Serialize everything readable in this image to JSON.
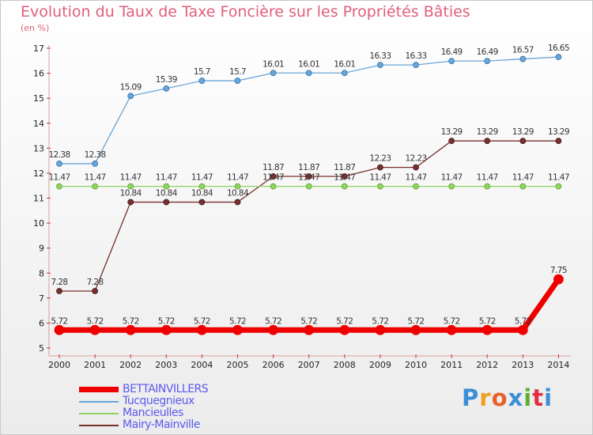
{
  "title": "Evolution du Taux de Taxe Foncière sur les Propriétés Bâties",
  "unit": "(en %)",
  "logo": {
    "text": "Proxiti",
    "letters": [
      "P",
      "r",
      "o",
      "x",
      "i",
      "t",
      "i"
    ],
    "colors": [
      "#3a8fd8",
      "#f0a020",
      "#e8602a",
      "#3a8fd8",
      "#60b030",
      "#e03040",
      "#3a8fd8"
    ]
  },
  "colors": {
    "title": "#e0607a",
    "legend_text": "#5a5af0"
  },
  "chart_data": {
    "type": "line",
    "title": "Evolution du Taux de Taxe Foncière sur les Propriétés Bâties",
    "ylabel": "(en %)",
    "xlabel": "",
    "x": [
      2000,
      2001,
      2002,
      2003,
      2004,
      2005,
      2006,
      2007,
      2008,
      2009,
      2010,
      2011,
      2012,
      2013,
      2014
    ],
    "ylim": [
      5,
      17
    ],
    "yticks": [
      5,
      6,
      7,
      8,
      9,
      10,
      11,
      12,
      13,
      14,
      15,
      16,
      17
    ],
    "grid": false,
    "legend_position": "bottom-left",
    "series": [
      {
        "name": "BETTAINVILLERS",
        "color": "#ee0000",
        "width": 7,
        "marker": 6,
        "values": [
          5.72,
          5.72,
          5.72,
          5.72,
          5.72,
          5.72,
          5.72,
          5.72,
          5.72,
          5.72,
          5.72,
          5.72,
          5.72,
          5.72,
          7.75
        ],
        "labels": [
          "5.72",
          "5.72",
          "5.72",
          "5.72",
          "5.72",
          "5.72",
          "5.72",
          "5.72",
          "5.72",
          "5.72",
          "5.72",
          "5.72",
          "5.72",
          "5.72",
          "7.75"
        ]
      },
      {
        "name": "Tucquegnieux",
        "color": "#6aa6d8",
        "width": 1.3,
        "marker": 3.5,
        "values": [
          12.38,
          12.38,
          15.09,
          15.39,
          15.7,
          15.7,
          16.01,
          16.01,
          16.01,
          16.33,
          16.33,
          16.49,
          16.49,
          16.57,
          16.65
        ],
        "labels": [
          "12.38",
          "12.38",
          "15.09",
          "15.39",
          "15.7",
          "15.7",
          "16.01",
          "16.01",
          "16.01",
          "16.33",
          "16.33",
          "16.49",
          "16.49",
          "16.57",
          "16.65"
        ]
      },
      {
        "name": "Mancieulles",
        "color": "#8fd460",
        "width": 1.3,
        "marker": 3.5,
        "values": [
          11.47,
          11.47,
          11.47,
          11.47,
          11.47,
          11.47,
          11.47,
          11.47,
          11.47,
          11.47,
          11.47,
          11.47,
          11.47,
          11.47,
          11.47
        ],
        "labels": [
          "11.47",
          "11.47",
          "11.47",
          "11.47",
          "11.47",
          "11.47",
          "11.47",
          "11.47",
          "11.47",
          "11.47",
          "11.47",
          "11.47",
          "11.47",
          "11.47",
          "11.47"
        ]
      },
      {
        "name": "Mairy-Mainville",
        "color": "#7a2f2f",
        "width": 1.3,
        "marker": 3.5,
        "values": [
          7.28,
          7.28,
          10.84,
          10.84,
          10.84,
          10.84,
          11.87,
          11.87,
          11.87,
          12.23,
          12.23,
          13.29,
          13.29,
          13.29,
          13.29
        ],
        "labels": [
          "7.28",
          "7.28",
          "10.84",
          "10.84",
          "10.84",
          "10.84",
          "11.87",
          "11.87",
          "11.87",
          "12.23",
          "12.23",
          "13.29",
          "13.29",
          "13.29",
          "13.29"
        ]
      }
    ]
  }
}
